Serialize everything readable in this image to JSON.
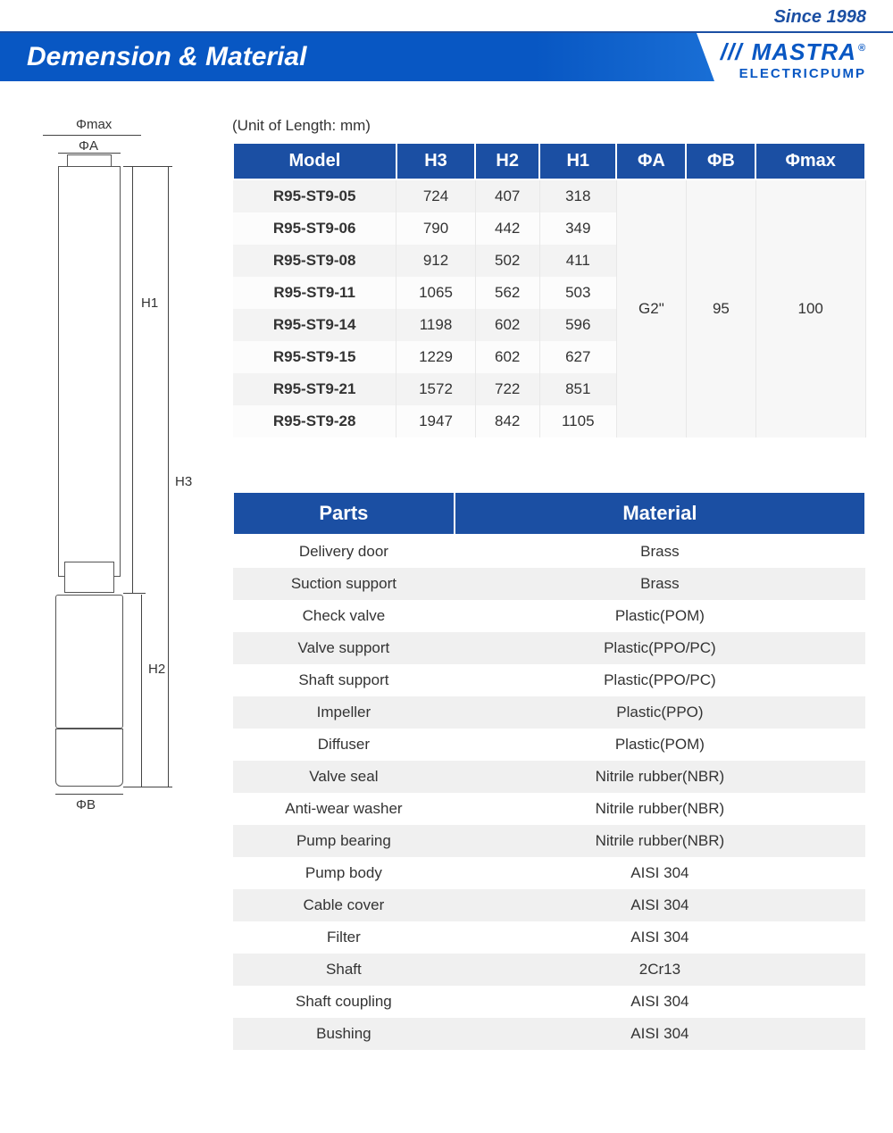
{
  "topbar": {
    "since": "Since 1998"
  },
  "header": {
    "title": "Demension & Material"
  },
  "logo": {
    "brand": "MASTRA",
    "reg": "®",
    "sub": "ELECTRICPUMP"
  },
  "unit_label": "(Unit of Length: mm)",
  "dim_table": {
    "headers": [
      "Model",
      "H3",
      "H2",
      "H1",
      "ΦA",
      "ΦB",
      "Φmax"
    ],
    "rows": [
      {
        "model": "R95-ST9-05",
        "h3": "724",
        "h2": "407",
        "h1": "318"
      },
      {
        "model": "R95-ST9-06",
        "h3": "790",
        "h2": "442",
        "h1": "349"
      },
      {
        "model": "R95-ST9-08",
        "h3": "912",
        "h2": "502",
        "h1": "411"
      },
      {
        "model": "R95-ST9-11",
        "h3": "1065",
        "h2": "562",
        "h1": "503"
      },
      {
        "model": "R95-ST9-14",
        "h3": "1198",
        "h2": "602",
        "h1": "596"
      },
      {
        "model": "R95-ST9-15",
        "h3": "1229",
        "h2": "602",
        "h1": "627"
      },
      {
        "model": "R95-ST9-21",
        "h3": "1572",
        "h2": "722",
        "h1": "851"
      },
      {
        "model": "R95-ST9-28",
        "h3": "1947",
        "h2": "842",
        "h1": "1105"
      }
    ],
    "phiA": "G2\"",
    "phiB": "95",
    "phimax": "100"
  },
  "mat_table": {
    "headers": [
      "Parts",
      "Material"
    ],
    "rows": [
      [
        "Delivery door",
        "Brass"
      ],
      [
        "Suction support",
        "Brass"
      ],
      [
        "Check valve",
        "Plastic(POM)"
      ],
      [
        "Valve support",
        "Plastic(PPO/PC)"
      ],
      [
        "Shaft support",
        "Plastic(PPO/PC)"
      ],
      [
        "Impeller",
        "Plastic(PPO)"
      ],
      [
        "Diffuser",
        "Plastic(POM)"
      ],
      [
        "Valve seal",
        "Nitrile rubber(NBR)"
      ],
      [
        "Anti-wear washer",
        "Nitrile rubber(NBR)"
      ],
      [
        "Pump bearing",
        "Nitrile rubber(NBR)"
      ],
      [
        "Pump body",
        "AISI 304"
      ],
      [
        "Cable cover",
        "AISI 304"
      ],
      [
        "Filter",
        "AISI 304"
      ],
      [
        "Shaft",
        "2Cr13"
      ],
      [
        "Shaft coupling",
        "AISI 304"
      ],
      [
        "Bushing",
        "AISI 304"
      ]
    ]
  },
  "diagram": {
    "labels": {
      "phimax": "Φmax",
      "phiA": "ΦA",
      "phiB": "ΦB",
      "h1": "H1",
      "h2": "H2",
      "h3": "H3"
    }
  },
  "colors": {
    "brand_blue": "#1b4fa3",
    "header_blue_dark": "#0857c3",
    "header_blue_light": "#2a86e8",
    "row_alt": "#f3f3f3"
  }
}
